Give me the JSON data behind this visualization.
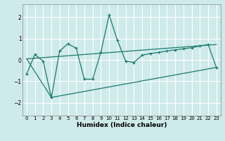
{
  "xlabel": "Humidex (Indice chaleur)",
  "ylabel": "",
  "bg_color": "#ceeaea",
  "grid_color": "#ffffff",
  "line_color": "#1a7a6e",
  "xlim": [
    -0.5,
    23.5
  ],
  "ylim": [
    -2.6,
    2.6
  ],
  "yticks": [
    -2,
    -1,
    0,
    1,
    2
  ],
  "xticks": [
    0,
    1,
    2,
    3,
    4,
    5,
    6,
    7,
    8,
    9,
    10,
    11,
    12,
    13,
    14,
    15,
    16,
    17,
    18,
    19,
    20,
    21,
    22,
    23
  ],
  "line1_x": [
    0,
    1,
    2,
    3,
    4,
    5,
    6,
    7,
    8,
    9,
    10,
    11,
    12,
    13,
    14,
    15,
    16,
    17,
    18,
    19,
    20,
    21,
    22,
    23
  ],
  "line1_y": [
    -0.65,
    0.25,
    -0.05,
    -1.75,
    0.42,
    0.75,
    0.55,
    -0.9,
    -0.9,
    0.35,
    2.1,
    0.92,
    -0.05,
    -0.12,
    0.22,
    0.3,
    0.35,
    0.42,
    0.47,
    0.52,
    0.57,
    0.65,
    0.72,
    -0.35
  ],
  "line2_x": [
    0,
    3,
    23
  ],
  "line2_y": [
    0.05,
    -1.75,
    -0.35
  ],
  "line3_x": [
    0,
    23
  ],
  "line3_y": [
    0.05,
    0.72
  ]
}
